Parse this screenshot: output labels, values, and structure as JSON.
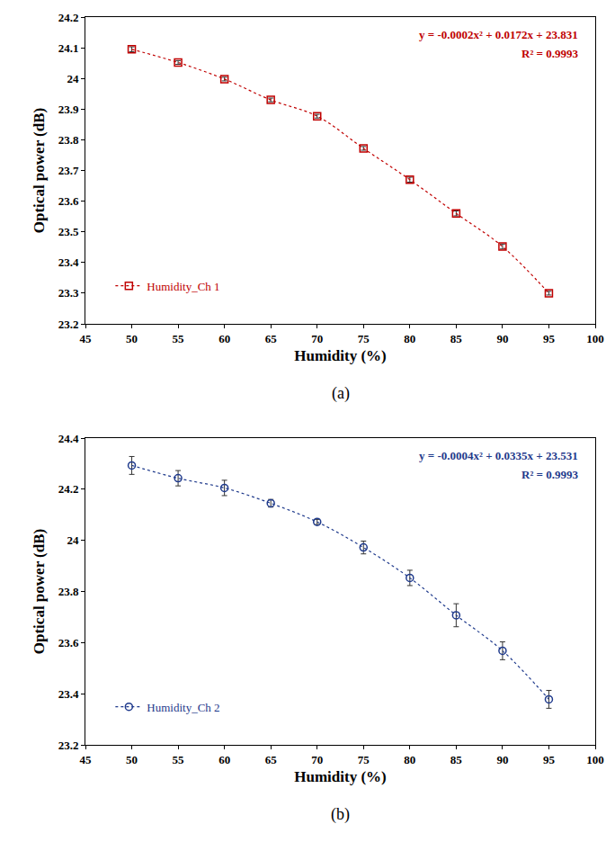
{
  "chart_data": [
    {
      "type": "scatter",
      "subtitle": "(a)",
      "x_label": "Humidity (%)",
      "y_label": "Optical power (dB)",
      "annotations": [
        "y = -0.0002x² + 0.0172x + 23.831",
        "R² = 0.9993"
      ],
      "series": [
        {
          "name": "Humidity_Ch 1",
          "color": "#c00000",
          "marker": "square-open",
          "line_style": "dotted",
          "x": [
            50,
            55,
            60,
            65,
            70,
            75,
            80,
            85,
            90,
            95
          ],
          "values": [
            24.095,
            24.052,
            23.998,
            23.93,
            23.877,
            23.772,
            23.67,
            23.56,
            23.452,
            23.3
          ],
          "errors": [
            0.008,
            0.006,
            0.006,
            0.006,
            0.006,
            0.006,
            0.008,
            0.008,
            0.008,
            0.006
          ]
        }
      ],
      "xlim": [
        45,
        100
      ],
      "xticks": [
        45,
        50,
        55,
        60,
        65,
        70,
        75,
        80,
        85,
        90,
        95,
        100
      ],
      "ylim": [
        23.2,
        24.2
      ],
      "yticks": [
        23.2,
        23.3,
        23.4,
        23.5,
        23.6,
        23.7,
        23.8,
        23.9,
        24,
        24.1,
        24.2
      ],
      "grid": false,
      "legend": "bottom left"
    },
    {
      "type": "scatter",
      "subtitle": "(b)",
      "x_label": "Humidity (%)",
      "y_label": "Optical power (dB)",
      "annotations": [
        "y = -0.0004x² + 0.0335x + 23.531",
        "R² = 0.9993"
      ],
      "series": [
        {
          "name": "Humidity_Ch 2",
          "color": "#1f3a8c",
          "marker": "circle-open",
          "line_style": "dotted",
          "x": [
            50,
            55,
            60,
            65,
            70,
            75,
            80,
            85,
            90,
            95
          ],
          "values": [
            24.293,
            24.243,
            24.205,
            24.145,
            24.072,
            23.972,
            23.853,
            23.707,
            23.568,
            23.378
          ],
          "errors": [
            0.035,
            0.03,
            0.03,
            0.015,
            0.01,
            0.025,
            0.03,
            0.045,
            0.035,
            0.035
          ]
        }
      ],
      "xlim": [
        45,
        100
      ],
      "xticks": [
        45,
        50,
        55,
        60,
        65,
        70,
        75,
        80,
        85,
        90,
        95,
        100
      ],
      "ylim": [
        23.2,
        24.4
      ],
      "yticks": [
        23.2,
        23.4,
        23.6,
        23.8,
        24,
        24.2,
        24.4
      ],
      "grid": false,
      "legend": "bottom left"
    }
  ]
}
